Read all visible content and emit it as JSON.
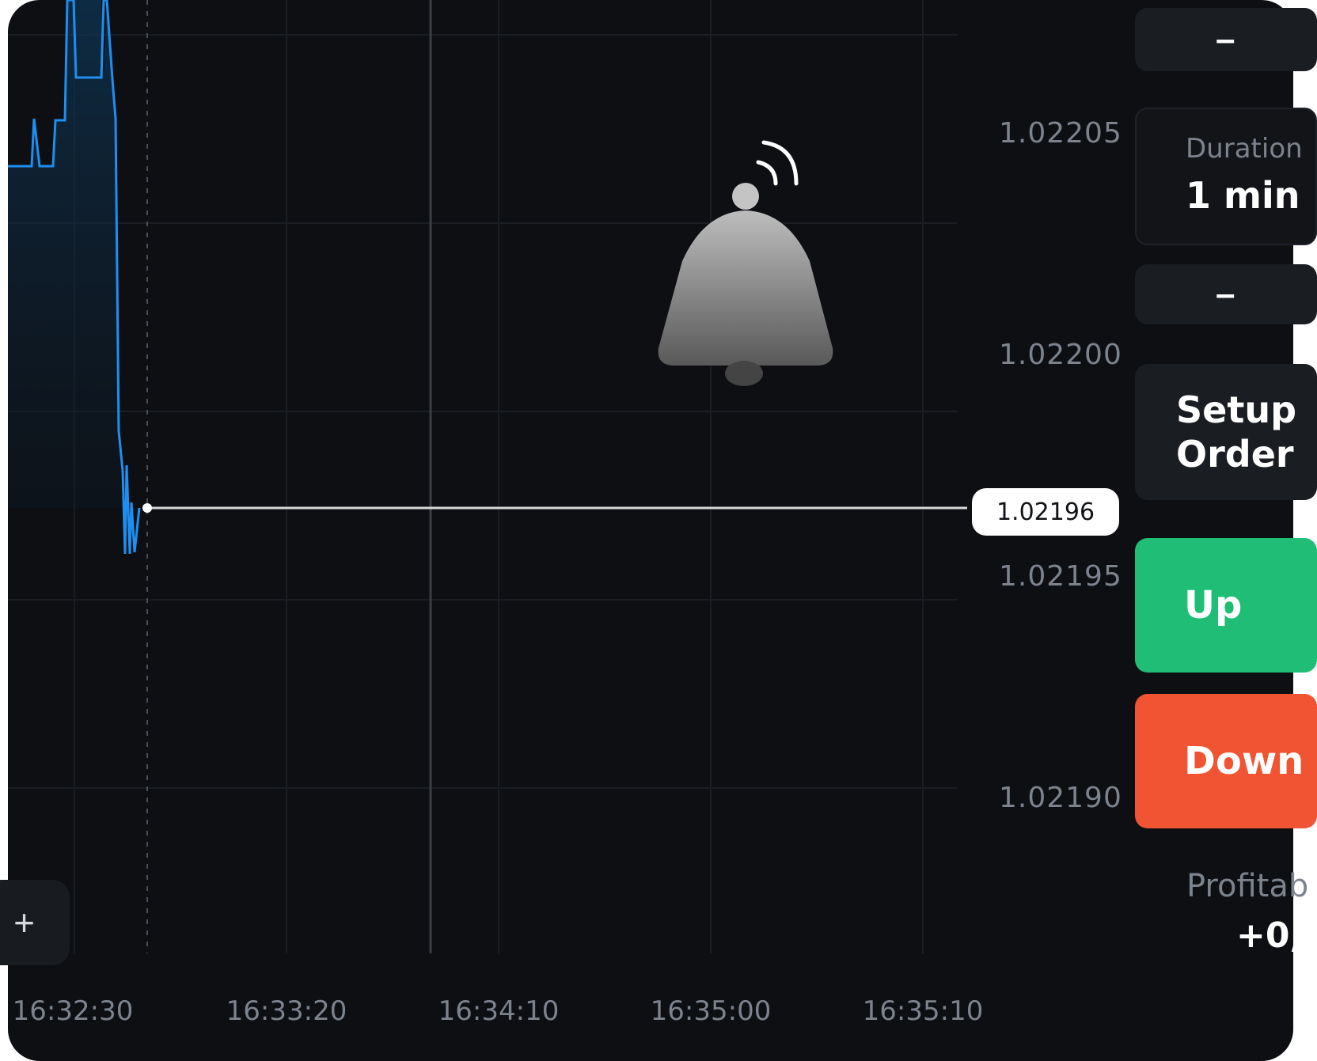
{
  "chart_data": {
    "type": "line",
    "y_ticks": [
      "1.02205",
      "1.02200",
      "1.02195",
      "1.02190"
    ],
    "x_ticks": [
      "16:32:30",
      "16:33:20",
      "16:34:10",
      "16:35:00",
      "16:35:10"
    ],
    "current_price": "1.02196",
    "line_color": "#1e8ff0",
    "grid": true
  },
  "sidebar": {
    "minus_top": "–",
    "duration_label": "Duration",
    "duration_value": "1 min",
    "minus_bottom": "–",
    "setup_order_label": "Setup Order",
    "up_label": "Up",
    "down_label": "Down",
    "profit_label": "Profitab",
    "profit_value": "+0,"
  },
  "toolbar": {
    "add_label": "+"
  },
  "icons": {
    "alert": "bell-icon"
  },
  "colors": {
    "background": "#0d0f13",
    "up": "#1fbd76",
    "down": "#f05432"
  }
}
